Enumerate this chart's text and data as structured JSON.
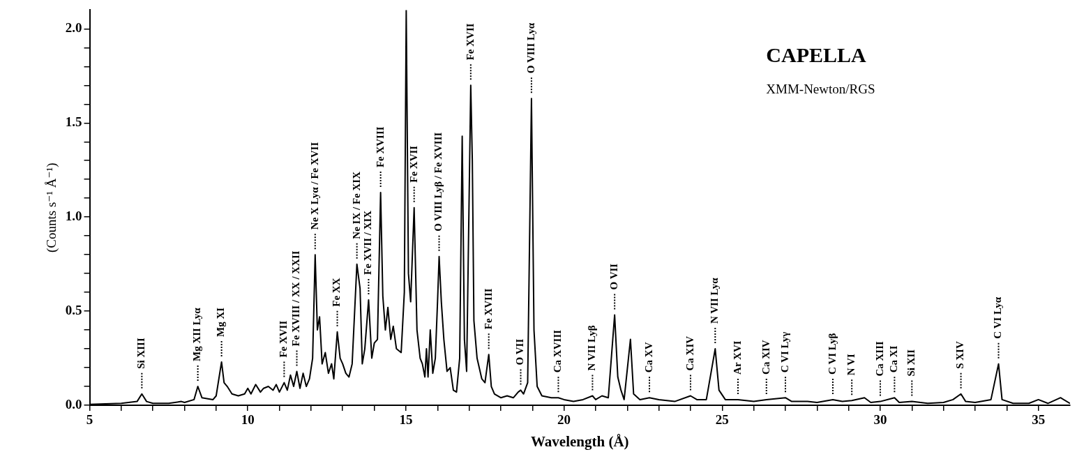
{
  "chart_data": {
    "type": "line",
    "title": "CAPELLA",
    "subtitle": "XMM-Newton/RGS",
    "xlabel": "Wavelength (Å)",
    "ylabel": "(Counts s⁻¹ Å⁻¹)",
    "xlim": [
      5,
      36
    ],
    "ylim": [
      0,
      2.1
    ],
    "xticks": [
      5,
      {
        "value": 6,
        "label": null
      },
      {
        "value": 7,
        "label": null
      },
      {
        "value": 8,
        "label": null
      },
      {
        "value": 9,
        "label": null
      },
      10,
      {
        "value": 11,
        "label": null
      },
      {
        "value": 12,
        "label": null
      },
      {
        "value": 13,
        "label": null
      },
      {
        "value": 14,
        "label": null
      },
      15,
      {
        "value": 16,
        "label": null
      },
      {
        "value": 17,
        "label": null
      },
      {
        "value": 18,
        "label": null
      },
      {
        "value": 19,
        "label": null
      },
      20,
      {
        "value": 21,
        "label": null
      },
      {
        "value": 22,
        "label": null
      },
      {
        "value": 23,
        "label": null
      },
      {
        "value": 24,
        "label": null
      },
      25,
      {
        "value": 26,
        "label": null
      },
      {
        "value": 27,
        "label": null
      },
      {
        "value": 28,
        "label": null
      },
      {
        "value": 29,
        "label": null
      },
      30,
      {
        "value": 31,
        "label": null
      },
      {
        "value": 32,
        "label": null
      },
      {
        "value": 33,
        "label": null
      },
      {
        "value": 34,
        "label": null
      },
      35
    ],
    "yticks": [
      {
        "value": 0,
        "label": "0.0"
      },
      {
        "value": 0.1,
        "label": null
      },
      {
        "value": 0.2,
        "label": null
      },
      {
        "value": 0.3,
        "label": null
      },
      {
        "value": 0.4,
        "label": null
      },
      {
        "value": 0.5,
        "label": "0.5"
      },
      {
        "value": 0.6,
        "label": null
      },
      {
        "value": 0.7,
        "label": null
      },
      {
        "value": 0.8,
        "label": null
      },
      {
        "value": 0.9,
        "label": null
      },
      {
        "value": 1,
        "label": "1.0"
      },
      {
        "value": 1.1,
        "label": null
      },
      {
        "value": 1.2,
        "label": null
      },
      {
        "value": 1.3,
        "label": null
      },
      {
        "value": 1.4,
        "label": null
      },
      {
        "value": 1.5,
        "label": "1.5"
      },
      {
        "value": 1.6,
        "label": null
      },
      {
        "value": 1.7,
        "label": null
      },
      {
        "value": 1.8,
        "label": null
      },
      {
        "value": 1.9,
        "label": null
      },
      {
        "value": 2,
        "label": "2.0"
      }
    ],
    "x": [
      5.0,
      6.0,
      6.5,
      6.65,
      6.8,
      7.0,
      7.5,
      7.9,
      8.0,
      8.3,
      8.42,
      8.55,
      8.9,
      9.0,
      9.17,
      9.25,
      9.35,
      9.5,
      9.7,
      9.9,
      10.0,
      10.1,
      10.25,
      10.4,
      10.5,
      10.65,
      10.8,
      10.9,
      11.0,
      11.15,
      11.25,
      11.35,
      11.45,
      11.55,
      11.65,
      11.75,
      11.85,
      11.95,
      12.05,
      12.13,
      12.2,
      12.27,
      12.35,
      12.45,
      12.55,
      12.65,
      12.72,
      12.83,
      12.92,
      13.0,
      13.1,
      13.2,
      13.3,
      13.45,
      13.55,
      13.62,
      13.7,
      13.82,
      13.92,
      14.0,
      14.1,
      14.2,
      14.27,
      14.35,
      14.43,
      14.52,
      14.6,
      14.7,
      14.85,
      14.95,
      15.01,
      15.08,
      15.15,
      15.26,
      15.35,
      15.45,
      15.52,
      15.6,
      15.65,
      15.7,
      15.77,
      15.85,
      15.93,
      16.0,
      16.05,
      16.12,
      16.2,
      16.3,
      16.4,
      16.5,
      16.6,
      16.7,
      16.78,
      16.85,
      16.92,
      17.05,
      17.1,
      17.15,
      17.25,
      17.4,
      17.5,
      17.62,
      17.7,
      17.8,
      18.0,
      18.2,
      18.4,
      18.55,
      18.63,
      18.72,
      18.85,
      18.97,
      19.05,
      19.15,
      19.3,
      19.6,
      19.82,
      20.0,
      20.3,
      20.6,
      20.9,
      21.0,
      21.2,
      21.4,
      21.6,
      21.7,
      21.8,
      21.9,
      22.1,
      22.2,
      22.4,
      22.7,
      23.0,
      23.5,
      24.0,
      24.2,
      24.5,
      24.78,
      24.9,
      25.1,
      25.5,
      26.0,
      26.4,
      27.0,
      27.2,
      27.7,
      28.0,
      28.5,
      28.8,
      29.1,
      29.5,
      29.7,
      30.0,
      30.45,
      30.6,
      31.0,
      31.5,
      32.0,
      32.3,
      32.55,
      32.7,
      33.0,
      33.5,
      33.74,
      33.85,
      34.2,
      34.7,
      35.0,
      35.3,
      35.7,
      36.0
    ],
    "series": [
      {
        "color": "#000000",
        "values": [
          0.005,
          0.01,
          0.02,
          0.06,
          0.02,
          0.01,
          0.01,
          0.02,
          0.015,
          0.03,
          0.1,
          0.04,
          0.03,
          0.05,
          0.23,
          0.12,
          0.1,
          0.06,
          0.05,
          0.06,
          0.09,
          0.06,
          0.11,
          0.07,
          0.09,
          0.1,
          0.08,
          0.11,
          0.07,
          0.12,
          0.08,
          0.16,
          0.1,
          0.18,
          0.09,
          0.17,
          0.1,
          0.14,
          0.25,
          0.8,
          0.4,
          0.47,
          0.22,
          0.28,
          0.17,
          0.22,
          0.14,
          0.39,
          0.25,
          0.22,
          0.17,
          0.15,
          0.22,
          0.75,
          0.62,
          0.22,
          0.3,
          0.56,
          0.25,
          0.33,
          0.35,
          1.13,
          0.58,
          0.4,
          0.52,
          0.35,
          0.42,
          0.3,
          0.28,
          0.6,
          2.1,
          0.7,
          0.55,
          1.05,
          0.4,
          0.25,
          0.22,
          0.15,
          0.3,
          0.15,
          0.4,
          0.17,
          0.25,
          0.55,
          0.79,
          0.55,
          0.35,
          0.18,
          0.2,
          0.08,
          0.07,
          0.25,
          1.43,
          0.35,
          0.18,
          1.7,
          1.3,
          0.45,
          0.25,
          0.14,
          0.12,
          0.27,
          0.1,
          0.06,
          0.04,
          0.05,
          0.04,
          0.07,
          0.08,
          0.06,
          0.12,
          1.63,
          0.4,
          0.1,
          0.05,
          0.04,
          0.04,
          0.03,
          0.02,
          0.03,
          0.05,
          0.03,
          0.05,
          0.04,
          0.48,
          0.15,
          0.08,
          0.03,
          0.35,
          0.06,
          0.03,
          0.04,
          0.03,
          0.02,
          0.05,
          0.03,
          0.03,
          0.3,
          0.08,
          0.03,
          0.03,
          0.02,
          0.03,
          0.04,
          0.02,
          0.02,
          0.015,
          0.03,
          0.02,
          0.025,
          0.04,
          0.015,
          0.02,
          0.04,
          0.015,
          0.02,
          0.01,
          0.015,
          0.03,
          0.06,
          0.02,
          0.015,
          0.03,
          0.22,
          0.03,
          0.01,
          0.01,
          0.03,
          0.01,
          0.04,
          0.01
        ]
      }
    ],
    "annotations": [
      {
        "text": "Si XIII",
        "x": 6.65,
        "y": 0.06
      },
      {
        "text": "Mg XII Lyα",
        "x": 8.42,
        "y": 0.1
      },
      {
        "text": "Mg XI",
        "x": 9.17,
        "y": 0.23
      },
      {
        "text": "Fe XVII",
        "x": 11.15,
        "y": 0.12
      },
      {
        "text": "Fe XVIII / XX / XXII",
        "x": 11.55,
        "y": 0.18
      },
      {
        "text": "Ne X Lyα / Fe XVII",
        "x": 12.13,
        "y": 0.8
      },
      {
        "text": "Fe XX",
        "x": 12.83,
        "y": 0.39
      },
      {
        "text": "Ne IX / Fe XIX",
        "x": 13.45,
        "y": 0.75
      },
      {
        "text": "Fe XVII / XIX",
        "x": 13.82,
        "y": 0.56
      },
      {
        "text": "Fe XVIII",
        "x": 14.2,
        "y": 1.13
      },
      {
        "text": "Fe XVII",
        "x": 15.26,
        "y": 1.05
      },
      {
        "text": "O VIII Lyβ / Fe XVIII",
        "x": 16.05,
        "y": 0.79
      },
      {
        "text": "Fe XVII",
        "x": 17.05,
        "y": 1.7
      },
      {
        "text": "Fe XVIII",
        "x": 17.62,
        "y": 0.27
      },
      {
        "text": "O VII",
        "x": 18.63,
        "y": 0.08
      },
      {
        "text": "O VIII Lyα",
        "x": 18.97,
        "y": 1.63
      },
      {
        "text": "Ca XVIII",
        "x": 19.82,
        "y": 0.04
      },
      {
        "text": "N VII Lyβ",
        "x": 20.9,
        "y": 0.05
      },
      {
        "text": "O VII",
        "x": 21.6,
        "y": 0.48
      },
      {
        "text": "Ca XV",
        "x": 22.7,
        "y": 0.04
      },
      {
        "text": "Ca XIV",
        "x": 24.0,
        "y": 0.05
      },
      {
        "text": "N VII Lyα",
        "x": 24.78,
        "y": 0.3
      },
      {
        "text": "Ar XVI",
        "x": 25.5,
        "y": 0.03
      },
      {
        "text": "Ca XIV",
        "x": 26.4,
        "y": 0.03
      },
      {
        "text": "C VI Lyγ",
        "x": 27.0,
        "y": 0.04
      },
      {
        "text": "C VI Lyβ",
        "x": 28.5,
        "y": 0.03
      },
      {
        "text": "N VI",
        "x": 29.1,
        "y": 0.025
      },
      {
        "text": "Ca XIII",
        "x": 30.0,
        "y": 0.02
      },
      {
        "text": "Ca XI",
        "x": 30.45,
        "y": 0.04
      },
      {
        "text": "Si XII",
        "x": 31.0,
        "y": 0.02
      },
      {
        "text": "S XIV",
        "x": 32.55,
        "y": 0.06
      },
      {
        "text": "C VI Lyα",
        "x": 33.74,
        "y": 0.22
      }
    ]
  }
}
